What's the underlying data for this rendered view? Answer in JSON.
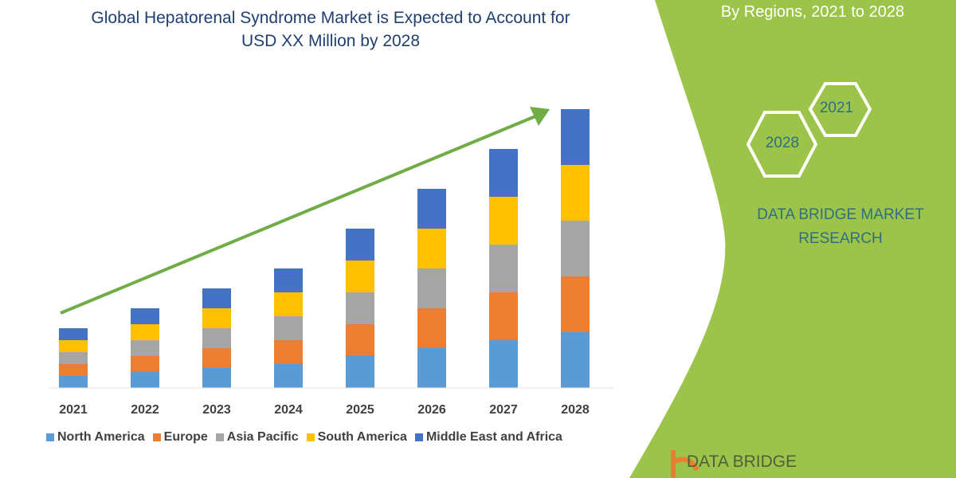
{
  "header": {
    "title_line1": "Global Hepatorenal Syndrome Market is Expected to Account for",
    "title_line2": "USD XX Million by 2028"
  },
  "side_panel": {
    "subtitle": "By Regions, 2021 to 2028",
    "hex_start": "2021",
    "hex_end": "2028",
    "brand_line1": "DATA BRIDGE MARKET",
    "brand_line2": "RESEARCH",
    "logo_text": "DATA BRIDGE",
    "panel_color": "#9DC44A"
  },
  "chart_data": {
    "type": "bar",
    "stacked": true,
    "title": "Global Hepatorenal Syndrome Market is Expected to Account for USD XX Million by 2028",
    "categories": [
      "2021",
      "2022",
      "2023",
      "2024",
      "2025",
      "2026",
      "2027",
      "2028"
    ],
    "series": [
      {
        "name": "North America",
        "color": "#5B9BD5",
        "values": [
          15,
          20,
          25,
          30,
          40,
          50,
          60,
          70
        ]
      },
      {
        "name": "Europe",
        "color": "#ED7D31",
        "values": [
          15,
          20,
          25,
          30,
          40,
          50,
          60,
          70
        ]
      },
      {
        "name": "Asia Pacific",
        "color": "#A5A5A5",
        "values": [
          15,
          20,
          25,
          30,
          40,
          50,
          60,
          70
        ]
      },
      {
        "name": "South America",
        "color": "#FFC000",
        "values": [
          15,
          20,
          25,
          30,
          40,
          50,
          60,
          70
        ]
      },
      {
        "name": "Middle East and Africa",
        "color": "#4472C4",
        "values": [
          15,
          20,
          25,
          30,
          40,
          50,
          60,
          70
        ]
      }
    ],
    "y_axis_shown": false,
    "grid": false,
    "legend": "bottom",
    "trend_arrow_color": "#70AD47"
  }
}
